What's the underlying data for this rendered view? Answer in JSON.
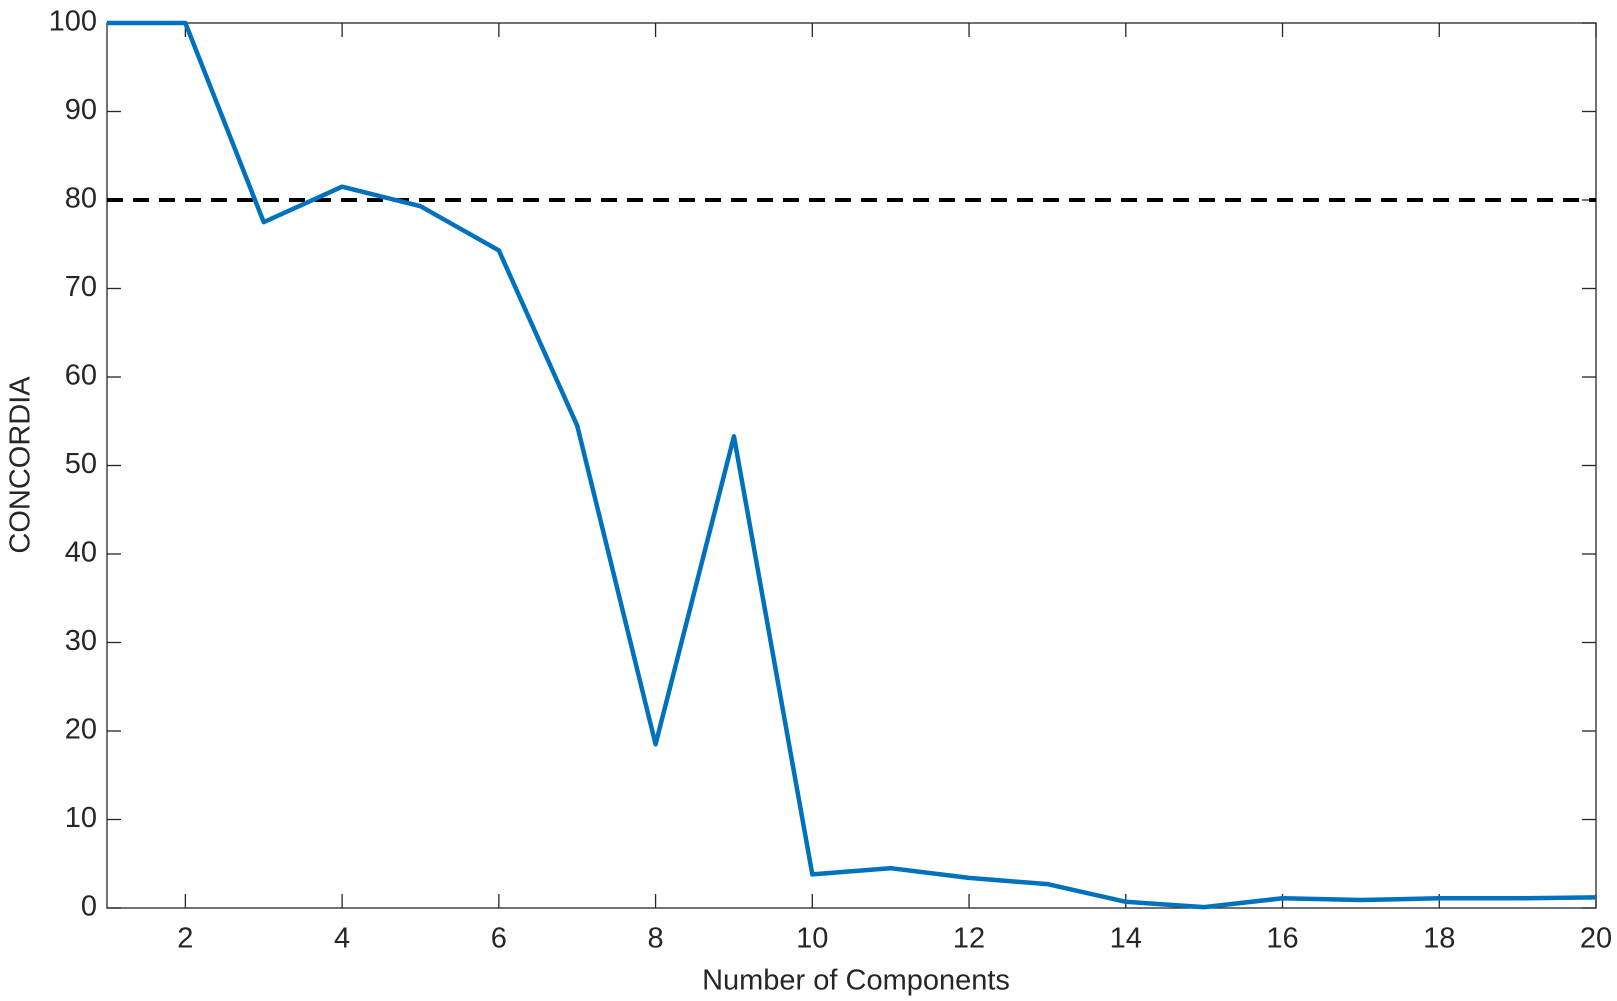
{
  "chart_data": {
    "type": "line",
    "x_label": "Number of Components",
    "y_label": "CONCORDIA",
    "x": [
      1,
      2,
      3,
      4,
      5,
      6,
      7,
      8,
      9,
      10,
      11,
      12,
      13,
      14,
      15,
      16,
      17,
      18,
      19,
      20
    ],
    "series": [
      {
        "color": "#0072bd",
        "values": [
          100,
          100,
          77.5,
          81.5,
          79.3,
          74.3,
          54.5,
          18.5,
          53.3,
          3.8,
          4.5,
          3.4,
          2.7,
          0.7,
          0.1,
          1.1,
          0.9,
          1.1,
          1.1,
          1.2
        ]
      }
    ],
    "reference_line": {
      "value": 80,
      "color": "#000000"
    },
    "xlim": [
      1,
      20
    ],
    "xticks": [
      2,
      4,
      6,
      8,
      10,
      12,
      14,
      16,
      18,
      20
    ],
    "ylim": [
      0,
      100
    ],
    "yticks": [
      0,
      10,
      20,
      30,
      40,
      50,
      60,
      70,
      80,
      90,
      100
    ]
  }
}
